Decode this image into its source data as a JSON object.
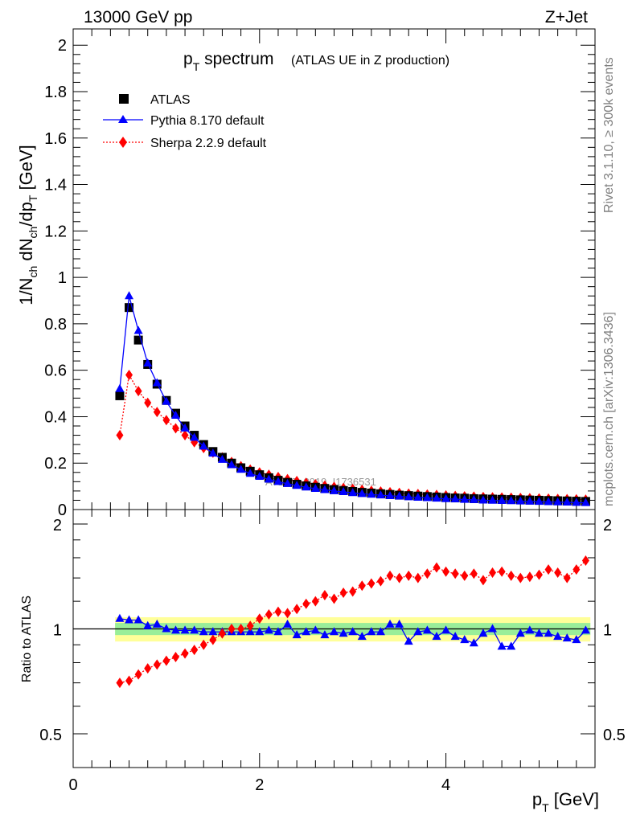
{
  "header": {
    "energy_label": "13000 GeV pp",
    "process_label": "Z+Jet",
    "title_main": "p",
    "title_sub": "T",
    "title_rest": " spectrum",
    "title_note": "(ATLAS UE in Z production)",
    "side_rivet": "Rivet 3.1.10, ≥ 300k events",
    "side_mcplots": "mcplots.cern.ch [arXiv:1306.3436]",
    "watermark": "ATLAS_2019_I1736531"
  },
  "chart_data": [
    {
      "type": "scatter",
      "panel": "main",
      "ylabel": "1/N_ch dN_ch/dp_T [GeV]",
      "xlabel": "",
      "xlim": [
        0,
        5.6
      ],
      "ylim": [
        0,
        2.07
      ],
      "yticks": [
        0,
        0.2,
        0.4,
        0.6,
        0.8,
        1,
        1.2,
        1.4,
        1.6,
        1.8,
        2
      ],
      "ytick_labels": [
        "0",
        "0.2",
        "0.4",
        "0.6",
        "0.8",
        "1",
        "1.2",
        "1.4",
        "1.6",
        "1.8",
        "2"
      ],
      "legend": {
        "placement": "top-left",
        "entries": [
          "ATLAS",
          "Pythia 8.170 default",
          "Sherpa 2.2.9 default"
        ]
      },
      "x": [
        0.5,
        0.6,
        0.7,
        0.8,
        0.9,
        1.0,
        1.1,
        1.2,
        1.3,
        1.4,
        1.5,
        1.6,
        1.7,
        1.8,
        1.9,
        2.0,
        2.1,
        2.2,
        2.3,
        2.4,
        2.5,
        2.6,
        2.7,
        2.8,
        2.9,
        3.0,
        3.1,
        3.2,
        3.3,
        3.4,
        3.5,
        3.6,
        3.7,
        3.8,
        3.9,
        4.0,
        4.1,
        4.2,
        4.3,
        4.4,
        4.5,
        4.6,
        4.7,
        4.8,
        4.9,
        5.0,
        5.1,
        5.2,
        5.3,
        5.4,
        5.5
      ],
      "series": [
        {
          "name": "ATLAS",
          "color": "#000000",
          "marker": "square",
          "values": [
            0.49,
            0.87,
            0.73,
            0.625,
            0.54,
            0.47,
            0.415,
            0.36,
            0.32,
            0.28,
            0.25,
            0.225,
            0.2,
            0.18,
            0.165,
            0.15,
            0.137,
            0.126,
            0.117,
            0.109,
            0.102,
            0.096,
            0.091,
            0.086,
            0.082,
            0.078,
            0.074,
            0.071,
            0.068,
            0.065,
            0.062,
            0.06,
            0.058,
            0.056,
            0.054,
            0.052,
            0.05,
            0.049,
            0.047,
            0.046,
            0.045,
            0.044,
            0.043,
            0.042,
            0.041,
            0.04,
            0.039,
            0.038,
            0.037,
            0.036,
            0.035
          ]
        },
        {
          "name": "Pythia 8.170 default",
          "color": "#0000ff",
          "marker": "triangle",
          "values": [
            0.52,
            0.92,
            0.77,
            0.63,
            0.545,
            0.465,
            0.405,
            0.35,
            0.31,
            0.272,
            0.242,
            0.215,
            0.192,
            0.172,
            0.155,
            0.142,
            0.13,
            0.12,
            0.111,
            0.103,
            0.096,
            0.09,
            0.085,
            0.08,
            0.076,
            0.072,
            0.068,
            0.065,
            0.062,
            0.059,
            0.057,
            0.054,
            0.052,
            0.05,
            0.048,
            0.046,
            0.045,
            0.043,
            0.042,
            0.04,
            0.039,
            0.038,
            0.037,
            0.036,
            0.035,
            0.034,
            0.033,
            0.032,
            0.031,
            0.03,
            0.029
          ]
        },
        {
          "name": "Sherpa 2.2.9 default",
          "color": "#ff0000",
          "marker": "diamond",
          "values": [
            0.32,
            0.58,
            0.51,
            0.46,
            0.42,
            0.385,
            0.35,
            0.32,
            0.29,
            0.265,
            0.245,
            0.225,
            0.205,
            0.187,
            0.172,
            0.16,
            0.15,
            0.14,
            0.131,
            0.123,
            0.115,
            0.109,
            0.103,
            0.098,
            0.093,
            0.089,
            0.085,
            0.081,
            0.078,
            0.075,
            0.072,
            0.069,
            0.067,
            0.065,
            0.063,
            0.061,
            0.059,
            0.057,
            0.056,
            0.054,
            0.053,
            0.052,
            0.051,
            0.05,
            0.049,
            0.048,
            0.047,
            0.046,
            0.045,
            0.044,
            0.043
          ]
        }
      ]
    },
    {
      "type": "scatter",
      "panel": "ratio",
      "ylabel": "Ratio to ATLAS",
      "xlabel": "p_T [GeV]",
      "xlim": [
        0,
        5.6
      ],
      "ylim": [
        0.4,
        2.2
      ],
      "xticks": [
        0,
        2,
        4
      ],
      "xtick_labels": [
        "0",
        "2",
        "4"
      ],
      "yticks": [
        0.5,
        1,
        2
      ],
      "ytick_labels": [
        "0.5",
        "1",
        "2"
      ],
      "band": {
        "green_halfwidth": 0.04,
        "yellow_halfwidth": 0.08
      },
      "x": [
        0.5,
        0.6,
        0.7,
        0.8,
        0.9,
        1.0,
        1.1,
        1.2,
        1.3,
        1.4,
        1.5,
        1.6,
        1.7,
        1.8,
        1.9,
        2.0,
        2.1,
        2.2,
        2.3,
        2.4,
        2.5,
        2.6,
        2.7,
        2.8,
        2.9,
        3.0,
        3.1,
        3.2,
        3.3,
        3.4,
        3.5,
        3.6,
        3.7,
        3.8,
        3.9,
        4.0,
        4.1,
        4.2,
        4.3,
        4.4,
        4.5,
        4.6,
        4.7,
        4.8,
        4.9,
        5.0,
        5.1,
        5.2,
        5.3,
        5.4,
        5.5
      ],
      "series": [
        {
          "name": "Pythia 8.170 default",
          "color": "#0000ff",
          "marker": "triangle",
          "values": [
            1.07,
            1.06,
            1.06,
            1.02,
            1.03,
            1.0,
            0.99,
            0.99,
            0.99,
            0.98,
            0.98,
            0.98,
            0.98,
            0.98,
            0.98,
            0.98,
            0.99,
            0.98,
            1.03,
            0.96,
            0.98,
            0.99,
            0.96,
            0.98,
            0.97,
            0.98,
            0.95,
            0.98,
            0.98,
            1.03,
            1.03,
            0.92,
            0.98,
            0.99,
            0.95,
            0.99,
            0.95,
            0.93,
            0.91,
            0.97,
            1.0,
            0.89,
            0.89,
            0.97,
            0.99,
            0.97,
            0.97,
            0.95,
            0.94,
            0.93,
            0.99
          ]
        },
        {
          "name": "Sherpa 2.2.9 default",
          "color": "#ff0000",
          "marker": "diamond",
          "values": [
            0.7,
            0.71,
            0.74,
            0.77,
            0.79,
            0.81,
            0.83,
            0.85,
            0.87,
            0.9,
            0.93,
            0.97,
            1.0,
            1.0,
            1.02,
            1.07,
            1.1,
            1.12,
            1.11,
            1.14,
            1.18,
            1.2,
            1.25,
            1.22,
            1.27,
            1.28,
            1.33,
            1.35,
            1.37,
            1.42,
            1.4,
            1.42,
            1.4,
            1.44,
            1.5,
            1.46,
            1.44,
            1.42,
            1.44,
            1.38,
            1.45,
            1.46,
            1.42,
            1.4,
            1.41,
            1.43,
            1.48,
            1.45,
            1.4,
            1.48,
            1.57
          ]
        }
      ]
    }
  ]
}
